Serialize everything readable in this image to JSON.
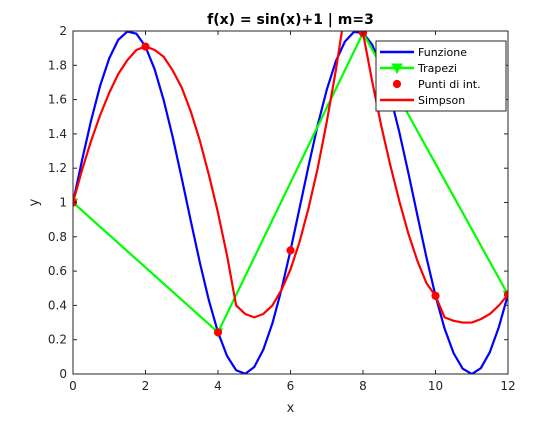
{
  "chart_data": {
    "type": "line",
    "title": "f(x) = sin(x)+1 | m=3",
    "xlabel": "x",
    "ylabel": "y",
    "xlim": [
      0,
      12
    ],
    "ylim": [
      0,
      2
    ],
    "xticks": [
      0,
      2,
      4,
      6,
      8,
      10,
      12
    ],
    "xtick_labels": [
      "0",
      "2",
      "4",
      "6",
      "8",
      "10",
      "12"
    ],
    "yticks": [
      0,
      0.2,
      0.4,
      0.6,
      0.8,
      1,
      1.2,
      1.4,
      1.6,
      1.8,
      2
    ],
    "ytick_labels": [
      "0",
      "0.2",
      "0.4",
      "0.6",
      "0.8",
      "1",
      "1.2",
      "1.4",
      "1.6",
      "1.8",
      "2"
    ],
    "grid": false,
    "legend_position": "top-right",
    "series": [
      {
        "name": "Funzione",
        "kind": "line",
        "color": "#0000ff",
        "x": [
          0,
          0.25,
          0.5,
          0.75,
          1,
          1.25,
          1.5,
          1.75,
          2,
          2.25,
          2.5,
          2.75,
          3,
          3.25,
          3.5,
          3.75,
          4,
          4.25,
          4.5,
          4.75,
          5,
          5.25,
          5.5,
          5.75,
          6,
          6.25,
          6.5,
          6.75,
          7,
          7.25,
          7.5,
          7.75,
          8,
          8.25,
          8.5,
          8.75,
          9,
          9.25,
          9.5,
          9.75,
          10,
          10.25,
          10.5,
          10.75,
          11,
          11.25,
          11.5,
          11.75,
          12
        ],
        "y": [
          1,
          1.247,
          1.479,
          1.682,
          1.841,
          1.949,
          1.997,
          1.984,
          1.909,
          1.778,
          1.598,
          1.382,
          1.141,
          0.892,
          0.649,
          0.428,
          0.243,
          0.105,
          0.022,
          0.001,
          0.041,
          0.142,
          0.295,
          0.492,
          0.721,
          0.967,
          1.215,
          1.451,
          1.657,
          1.823,
          1.938,
          1.995,
          1.989,
          1.922,
          1.798,
          1.625,
          1.412,
          1.174,
          0.925,
          0.68,
          0.456,
          0.265,
          0.121,
          0.031,
          0.0,
          0.034,
          0.128,
          0.275,
          0.463
        ]
      },
      {
        "name": "Trapezi",
        "kind": "line-marker",
        "marker": "triangle-down",
        "color": "#00ff00",
        "x": [
          0,
          4,
          8,
          12
        ],
        "y": [
          1,
          0.243,
          1.989,
          0.463
        ]
      },
      {
        "name": "Punti di int.",
        "kind": "marker",
        "marker": "circle",
        "color": "#ff0000",
        "x": [
          0,
          2,
          4,
          6,
          8,
          10,
          12
        ],
        "y": [
          1,
          1.909,
          0.243,
          0.721,
          1.989,
          0.456,
          0.463
        ]
      },
      {
        "name": "Simpson",
        "kind": "line",
        "color": "#ff0000",
        "x": [
          0,
          0.25,
          0.5,
          0.75,
          1,
          1.25,
          1.5,
          1.75,
          2,
          2.25,
          2.5,
          2.75,
          3,
          3.25,
          3.5,
          3.75,
          4,
          4.25,
          4.5,
          4.75,
          5,
          5.25,
          5.5,
          5.75,
          6,
          6.25,
          6.5,
          6.75,
          7,
          7.25,
          7.5,
          7.75,
          8,
          8.25,
          8.5,
          8.75,
          9,
          9.25,
          9.5,
          9.75,
          10,
          10.25,
          10.5,
          10.75,
          11,
          11.25,
          11.5,
          11.75,
          12
        ],
        "y": [
          1,
          1.19,
          1.36,
          1.51,
          1.64,
          1.75,
          1.83,
          1.89,
          1.91,
          1.89,
          1.85,
          1.77,
          1.67,
          1.53,
          1.36,
          1.16,
          0.94,
          0.69,
          0.4,
          0.35,
          0.33,
          0.35,
          0.4,
          0.49,
          0.61,
          0.77,
          0.97,
          1.2,
          1.47,
          1.77,
          2.11,
          2.48,
          1.989,
          1.71,
          1.45,
          1.22,
          1.01,
          0.82,
          0.66,
          0.53,
          0.456,
          0.33,
          0.31,
          0.3,
          0.3,
          0.32,
          0.35,
          0.4,
          0.463
        ]
      }
    ]
  }
}
